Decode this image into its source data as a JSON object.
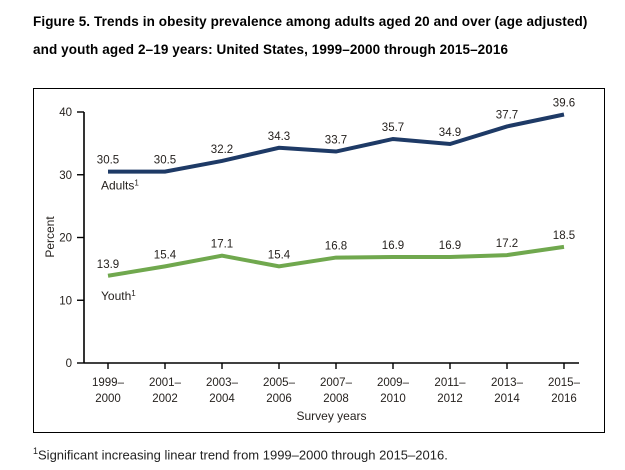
{
  "title": "Figure 5. Trends in obesity prevalence among adults aged 20 and over (age adjusted) and youth aged 2–19 years: United States, 1999–2000 through 2015–2016",
  "footnote": {
    "marker": "1",
    "text": "Significant increasing linear trend from 1999–2000 through 2015–2016."
  },
  "chart_data": {
    "type": "line",
    "categories": [
      "1999–2000",
      "2001–2002",
      "2003–2004",
      "2005–2006",
      "2007–2008",
      "2009–2010",
      "2011–2012",
      "2013–2014",
      "2015–2016"
    ],
    "series": [
      {
        "name": "Adults",
        "footnote_marker": "1",
        "color": "#1e3a66",
        "values": [
          30.5,
          30.5,
          32.2,
          34.3,
          33.7,
          35.7,
          34.9,
          37.7,
          39.6
        ]
      },
      {
        "name": "Youth",
        "footnote_marker": "1",
        "color": "#70a84e",
        "values": [
          13.9,
          15.4,
          17.1,
          15.4,
          16.8,
          16.9,
          16.9,
          17.2,
          18.5
        ]
      }
    ],
    "xlabel": "Survey years",
    "ylabel": "Percent",
    "ylim": [
      0,
      40
    ],
    "yticks": [
      0,
      10,
      20,
      30,
      40
    ],
    "grid": false,
    "legend": "inline-series-labels",
    "data_labels": true,
    "axis_color": "#000000",
    "text_color": "#26221f"
  }
}
